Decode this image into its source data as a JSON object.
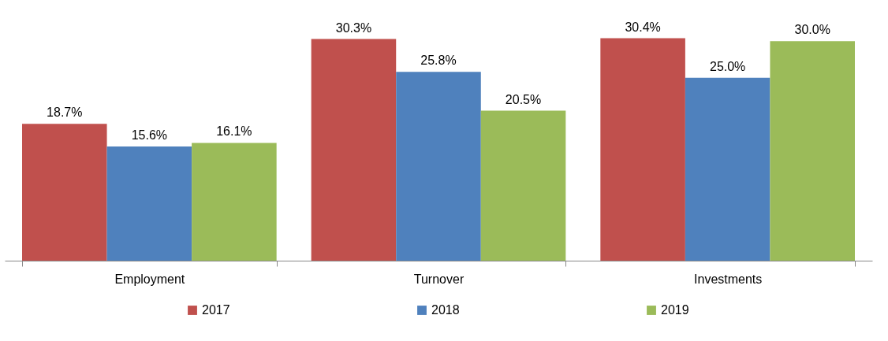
{
  "chart_data": {
    "type": "bar",
    "categories": [
      "Employment",
      "Turnover",
      "Investments"
    ],
    "series": [
      {
        "name": "2017",
        "color": "#c0504d",
        "values": [
          18.7,
          30.3,
          30.4
        ],
        "value_labels": [
          "18.7%",
          "30.3%",
          "30.4%"
        ]
      },
      {
        "name": "2018",
        "color": "#4f81bd",
        "values": [
          15.6,
          25.8,
          25.0
        ],
        "value_labels": [
          "15.6%",
          "25.8%",
          "25.0%"
        ]
      },
      {
        "name": "2019",
        "color": "#9bbb59",
        "values": [
          16.1,
          20.5,
          30.0
        ],
        "value_labels": [
          "16.1%",
          "20.5%",
          "30.0%"
        ]
      }
    ],
    "legend": "bottom",
    "grid": false
  }
}
